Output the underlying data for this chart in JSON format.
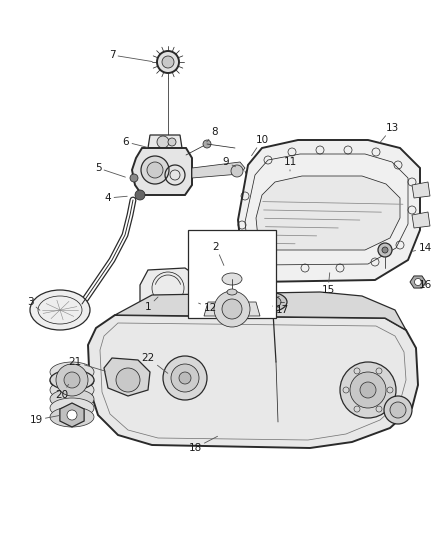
{
  "bg_color": "#ffffff",
  "line_color": "#2a2a2a",
  "label_color": "#1a1a1a",
  "lw": 0.9,
  "lw_thin": 0.55,
  "lw_thick": 1.4,
  "figsize": [
    4.38,
    5.33
  ],
  "dpi": 100,
  "xlim": [
    0,
    438
  ],
  "ylim": [
    0,
    533
  ]
}
